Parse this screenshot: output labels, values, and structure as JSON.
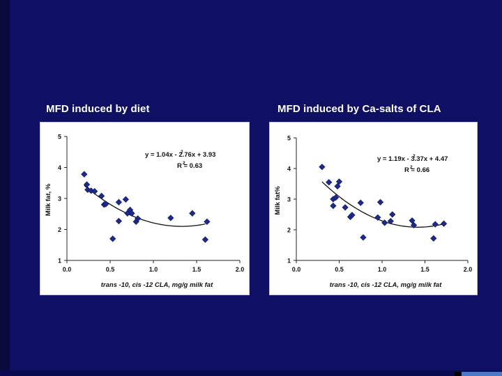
{
  "slide": {
    "left_title": "MFD induced by diet",
    "right_title": "MFD induced by Ca-salts of CLA",
    "background_color": "#0f0f63",
    "accent_color": "#4a78c8"
  },
  "chart_data": [
    {
      "type": "scatter",
      "title": "MFD induced by diet",
      "xlabel": "trans -10, cis -12 CLA, mg/g milk fat",
      "ylabel": "Milk fat, %",
      "xlim": [
        0,
        2
      ],
      "ylim": [
        1,
        5
      ],
      "x_ticks": [
        "0.0",
        "0.5",
        "1.0",
        "1.5",
        "2.0"
      ],
      "y_ticks": [
        "1",
        "2",
        "3",
        "4",
        "5"
      ],
      "equation": "y = 1.04x  - 2.76x + 3.93",
      "equation_exp": "2",
      "r2": "R  = 0.63",
      "r2_exp": "2",
      "fit": {
        "a": 1.04,
        "b": -2.76,
        "c": 3.93,
        "x_from": 0.2,
        "x_to": 1.6
      },
      "marker_color": "#1c2b8a",
      "points": [
        [
          0.2,
          3.78
        ],
        [
          0.23,
          3.45
        ],
        [
          0.24,
          3.28
        ],
        [
          0.28,
          3.25
        ],
        [
          0.32,
          3.23
        ],
        [
          0.4,
          3.08
        ],
        [
          0.43,
          2.8
        ],
        [
          0.45,
          2.82
        ],
        [
          0.53,
          1.7
        ],
        [
          0.6,
          2.27
        ],
        [
          0.6,
          2.88
        ],
        [
          0.68,
          2.97
        ],
        [
          0.7,
          2.52
        ],
        [
          0.73,
          2.63
        ],
        [
          0.75,
          2.52
        ],
        [
          0.8,
          2.25
        ],
        [
          0.82,
          2.35
        ],
        [
          1.2,
          2.37
        ],
        [
          1.45,
          2.52
        ],
        [
          1.6,
          1.67
        ],
        [
          1.62,
          2.25
        ]
      ]
    },
    {
      "type": "scatter",
      "title": "MFD induced by Ca-salts of CLA",
      "xlabel": "trans -10, cis -12 CLA, mg/g milk fat",
      "ylabel": "Milk fat%",
      "xlim": [
        0,
        2
      ],
      "ylim": [
        1,
        5
      ],
      "x_ticks": [
        "0.0",
        "0.5",
        "1.0",
        "1.5",
        "2.0"
      ],
      "y_ticks": [
        "1",
        "2",
        "3",
        "4",
        "5"
      ],
      "equation": "y = 1.19x  - 3.37x + 4.47",
      "equation_exp": "2",
      "r2": "R  = 0.66",
      "r2_exp": "2",
      "fit": {
        "a": 1.19,
        "b": -3.37,
        "c": 4.47,
        "x_from": 0.3,
        "x_to": 1.72
      },
      "marker_color": "#1c2b8a",
      "points": [
        [
          0.3,
          4.05
        ],
        [
          0.38,
          3.55
        ],
        [
          0.43,
          2.78
        ],
        [
          0.43,
          3.0
        ],
        [
          0.46,
          3.05
        ],
        [
          0.48,
          3.42
        ],
        [
          0.5,
          3.57
        ],
        [
          0.57,
          2.73
        ],
        [
          0.63,
          2.42
        ],
        [
          0.65,
          2.48
        ],
        [
          0.75,
          2.88
        ],
        [
          0.78,
          1.75
        ],
        [
          0.95,
          2.4
        ],
        [
          0.98,
          2.9
        ],
        [
          1.03,
          2.23
        ],
        [
          1.1,
          2.28
        ],
        [
          1.12,
          2.5
        ],
        [
          1.35,
          2.3
        ],
        [
          1.37,
          2.15
        ],
        [
          1.6,
          1.72
        ],
        [
          1.62,
          2.18
        ],
        [
          1.72,
          2.2
        ]
      ]
    }
  ]
}
